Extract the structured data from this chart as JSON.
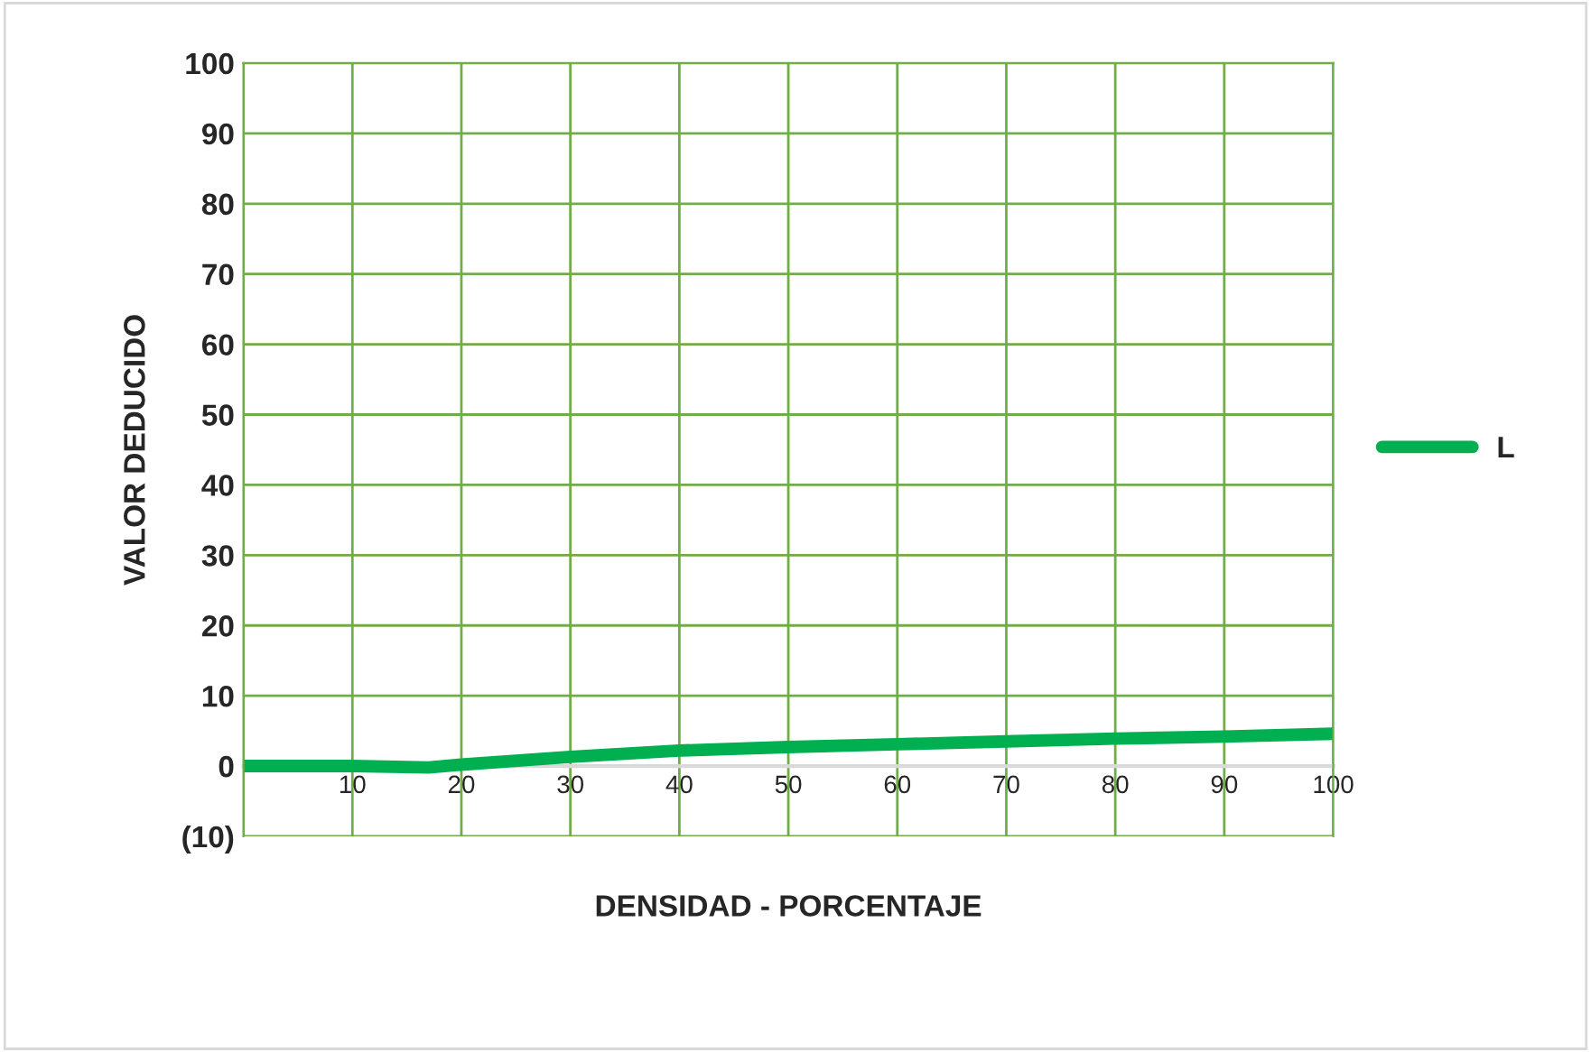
{
  "chart_data": {
    "type": "line",
    "xlabel": "DENSIDAD - PORCENTAJE",
    "ylabel": "VALOR DEDUCIDO",
    "series": [
      {
        "name": "L",
        "color": "#00b050",
        "x": [
          0,
          10,
          17,
          20,
          30,
          40,
          50,
          60,
          70,
          80,
          90,
          100
        ],
        "values": [
          0,
          0,
          -0.2,
          0.2,
          1.3,
          2.2,
          2.7,
          3.1,
          3.5,
          3.9,
          4.2,
          4.6
        ]
      }
    ],
    "xlim": [
      0,
      100
    ],
    "xticks": [
      {
        "value": 0,
        "label": null
      },
      10,
      20,
      30,
      40,
      50,
      60,
      70,
      80,
      90,
      100
    ],
    "ylim": [
      -10,
      100
    ],
    "yticks": [
      {
        "value": -10,
        "label": "(10)"
      },
      0,
      10,
      20,
      30,
      40,
      50,
      60,
      70,
      80,
      90,
      100
    ],
    "grid": true,
    "legend": "right",
    "marker": "none",
    "line_style": "solid"
  }
}
